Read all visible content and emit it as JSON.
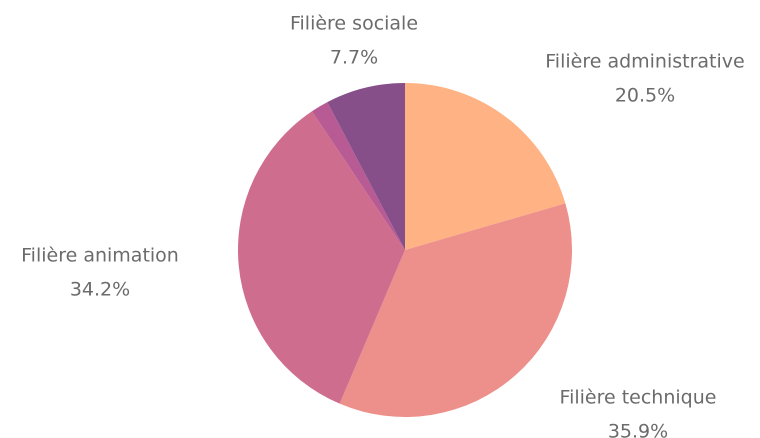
{
  "chart_data": {
    "type": "pie",
    "categories": [
      "Filière administrative",
      "Filière technique",
      "Filière animation",
      null,
      "Filière sociale"
    ],
    "values": [
      20.5,
      35.9,
      34.2,
      1.7,
      7.7
    ],
    "value_labels": [
      "20.5%",
      "35.9%",
      "34.2%",
      null,
      "7.7%"
    ],
    "colors": [
      "#ffb283",
      "#ed8f8a",
      "#cf6d8e",
      "#b85a93",
      "#864f8a"
    ]
  }
}
